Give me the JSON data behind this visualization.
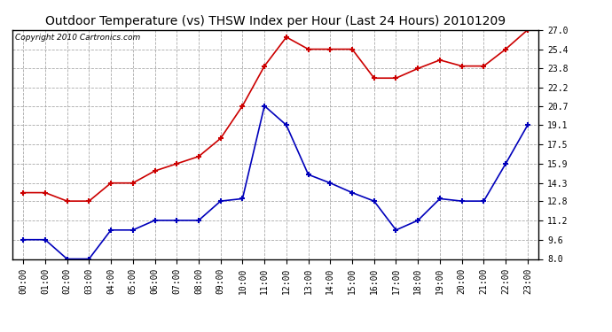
{
  "title": "Outdoor Temperature (vs) THSW Index per Hour (Last 24 Hours) 20101209",
  "copyright": "Copyright 2010 Cartronics.com",
  "hours": [
    "00:00",
    "01:00",
    "02:00",
    "03:00",
    "04:00",
    "05:00",
    "06:00",
    "07:00",
    "08:00",
    "09:00",
    "10:00",
    "11:00",
    "12:00",
    "13:00",
    "14:00",
    "15:00",
    "16:00",
    "17:00",
    "18:00",
    "19:00",
    "20:00",
    "21:00",
    "22:00",
    "23:00"
  ],
  "temp": [
    9.6,
    9.6,
    8.0,
    8.0,
    10.4,
    10.4,
    11.2,
    11.2,
    11.2,
    12.8,
    13.0,
    20.7,
    19.1,
    15.0,
    14.3,
    13.5,
    12.8,
    10.4,
    11.2,
    13.0,
    12.8,
    12.8,
    15.9,
    19.1
  ],
  "thsw": [
    13.5,
    13.5,
    12.8,
    12.8,
    14.3,
    14.3,
    15.3,
    15.9,
    16.5,
    18.0,
    20.7,
    24.0,
    26.4,
    25.4,
    25.4,
    25.4,
    23.0,
    23.0,
    23.8,
    24.5,
    24.0,
    24.0,
    25.4,
    27.0
  ],
  "ylim": [
    8.0,
    27.0
  ],
  "yticks": [
    8.0,
    9.6,
    11.2,
    12.8,
    14.3,
    15.9,
    17.5,
    19.1,
    20.7,
    22.2,
    23.8,
    25.4,
    27.0
  ],
  "temp_color": "#0000bb",
  "thsw_color": "#cc0000",
  "bg_color": "#ffffff",
  "grid_color": "#aaaaaa",
  "title_fontsize": 10,
  "copyright_fontsize": 6.5
}
